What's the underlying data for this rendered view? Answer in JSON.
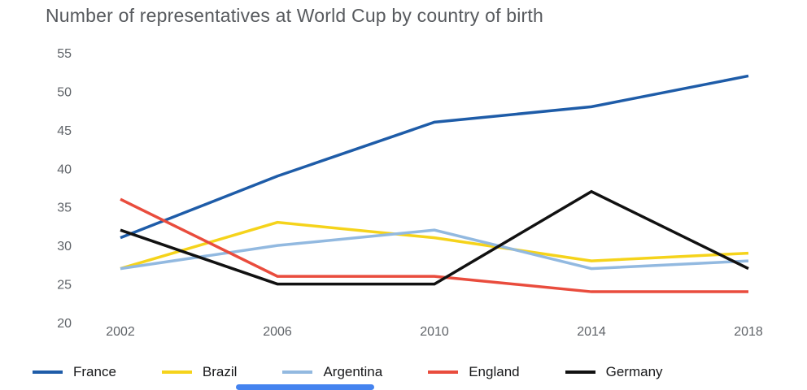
{
  "title": "Number of representatives at World Cup by country of birth",
  "chart_data": {
    "type": "line",
    "title": "Number of representatives at World Cup by country of birth",
    "x": [
      2002,
      2006,
      2010,
      2014,
      2018
    ],
    "series": [
      {
        "name": "France",
        "color": "#1e5ca8",
        "values": [
          31,
          39,
          46,
          48,
          52
        ]
      },
      {
        "name": "Brazil",
        "color": "#f5d31b",
        "values": [
          27,
          33,
          31,
          28,
          29
        ]
      },
      {
        "name": "Argentina",
        "color": "#92b9e0",
        "values": [
          27,
          30,
          32,
          27,
          28
        ]
      },
      {
        "name": "England",
        "color": "#e94c3d",
        "values": [
          36,
          26,
          26,
          24,
          24
        ]
      },
      {
        "name": "Germany",
        "color": "#111111",
        "values": [
          32,
          25,
          25,
          37,
          27
        ]
      }
    ],
    "xlabel": "",
    "ylabel": "",
    "ylim": [
      20,
      55
    ],
    "ytick_step": 5,
    "grid": false,
    "legend_position": "bottom"
  },
  "scrollbar": {
    "present": true,
    "color": "#4483ef"
  }
}
